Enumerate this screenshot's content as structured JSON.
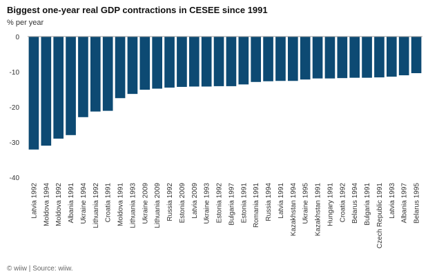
{
  "chart_data": {
    "type": "bar",
    "title": "Biggest one-year real GDP contractions in CESEE since 1991",
    "ylabel": "% per year",
    "ylim": [
      -40,
      0
    ],
    "yticks": [
      0,
      -10,
      -20,
      -30,
      -40
    ],
    "grid": false,
    "legend": "none",
    "bar_color": "#0d4a73",
    "categories": [
      "Latvia 1992",
      "Moldova 1994",
      "Moldova 1992",
      "Albania 1991",
      "Ukraine 1994",
      "Lithuania 1992",
      "Croatia 1991",
      "Moldova 1991",
      "Lithuania 1993",
      "Ukraine 2009",
      "Lithuania 2009",
      "Russia 1992",
      "Estonia 2009",
      "Latvia 2009",
      "Ukraine 1993",
      "Estonia 1992",
      "Bulgaria 1997",
      "Estonia 1991",
      "Romania 1991",
      "Russia 1994",
      "Latvia 1991",
      "Kazakhstan 1994",
      "Ukraine 1995",
      "Kazakhstan 1991",
      "Hungary 1991",
      "Croatia 1992",
      "Belarus 1994",
      "Bulgaria 1991",
      "Czech Republic 1991",
      "Latvia 1993",
      "Albania 1997",
      "Belarus 1995"
    ],
    "values": [
      -32.1,
      -31.0,
      -29.0,
      -28.0,
      -22.9,
      -21.3,
      -21.1,
      -17.5,
      -16.3,
      -15.1,
      -14.8,
      -14.5,
      -14.3,
      -14.2,
      -14.2,
      -14.1,
      -14.1,
      -13.6,
      -12.9,
      -12.7,
      -12.6,
      -12.6,
      -12.2,
      -11.9,
      -11.9,
      -11.8,
      -11.7,
      -11.7,
      -11.6,
      -11.4,
      -11.0,
      -10.4
    ]
  },
  "footer": "© wiiw | Source: wiiw."
}
